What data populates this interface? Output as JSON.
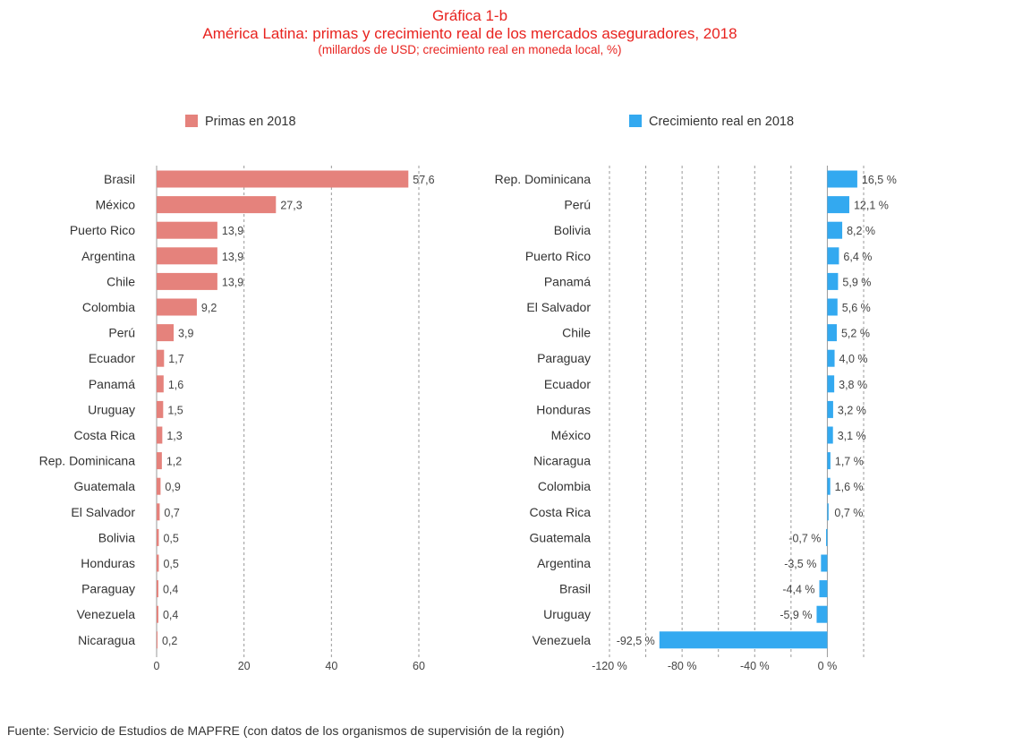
{
  "header": {
    "title_line1": "Gráfica  1-b",
    "title_line2": "América Latina: primas y crecimiento real de los mercados aseguradores, 2018",
    "subtitle": "(millardos de USD; crecimiento real en moneda local, %)"
  },
  "source": "Fuente: Servicio de Estudios de MAPFRE (con datos de los organismos de supervisión de la región)",
  "colors": {
    "left_bar": "#e5827c",
    "right_bar": "#33a9f0",
    "title": "#e8231f"
  },
  "chart_data": [
    {
      "type": "bar",
      "orientation": "horizontal",
      "legend": "Primas en 2018",
      "legend_placement": "top-left",
      "categories": [
        "Brasil",
        "México",
        "Puerto Rico",
        "Argentina",
        "Chile",
        "Colombia",
        "Perú",
        "Ecuador",
        "Panamá",
        "Uruguay",
        "Costa Rica",
        "Rep. Dominicana",
        "Guatemala",
        "El Salvador",
        "Bolivia",
        "Honduras",
        "Paraguay",
        "Venezuela",
        "Nicaragua"
      ],
      "values": [
        57.6,
        27.3,
        13.9,
        13.9,
        13.9,
        9.2,
        3.9,
        1.7,
        1.6,
        1.5,
        1.3,
        1.2,
        0.9,
        0.7,
        0.5,
        0.5,
        0.4,
        0.4,
        0.2
      ],
      "labels": [
        "57,6",
        "27,3",
        "13,9",
        "13,9",
        "13,9",
        "9,2",
        "3,9",
        "1,7",
        "1,6",
        "1,5",
        "1,3",
        "1,2",
        "0,9",
        "0,7",
        "0,5",
        "0,5",
        "0,4",
        "0,4",
        "0,2"
      ],
      "xlim": [
        0,
        60
      ],
      "xticks": [
        0,
        20,
        40,
        60
      ],
      "xtick_labels": [
        "0",
        "20",
        "40",
        "60"
      ],
      "grid": true
    },
    {
      "type": "bar",
      "orientation": "horizontal",
      "legend": "Crecimiento real en 2018",
      "legend_placement": "top-left",
      "categories": [
        "Rep. Dominicana",
        "Perú",
        "Bolivia",
        "Puerto Rico",
        "Panamá",
        "El Salvador",
        "Chile",
        "Paraguay",
        "Ecuador",
        "Honduras",
        "México",
        "Nicaragua",
        "Colombia",
        "Costa Rica",
        "Guatemala",
        "Argentina",
        "Brasil",
        "Uruguay",
        "Venezuela"
      ],
      "values": [
        16.5,
        12.1,
        8.2,
        6.4,
        5.9,
        5.6,
        5.2,
        4.0,
        3.8,
        3.2,
        3.1,
        1.7,
        1.6,
        0.7,
        -0.7,
        -3.5,
        -4.4,
        -5.9,
        -92.5
      ],
      "labels": [
        "16,5 %",
        "12,1 %",
        "8,2 %",
        "6,4 %",
        "5,9 %",
        "5,6 %",
        "5,2 %",
        "4,0 %",
        "3,8 %",
        "3,2 %",
        "3,1 %",
        "1,7 %",
        "1,6 %",
        "0,7 %",
        "-0,7 %",
        "-3,5 %",
        "-4,4 %",
        "-5,9 %",
        "-92,5 %"
      ],
      "xlim": [
        -120,
        20
      ],
      "xticks": [
        -120,
        -80,
        -40,
        0
      ],
      "xtick_labels": [
        "-120 %",
        "-80 %",
        "-40 %",
        "0 %"
      ],
      "grid": true
    }
  ]
}
